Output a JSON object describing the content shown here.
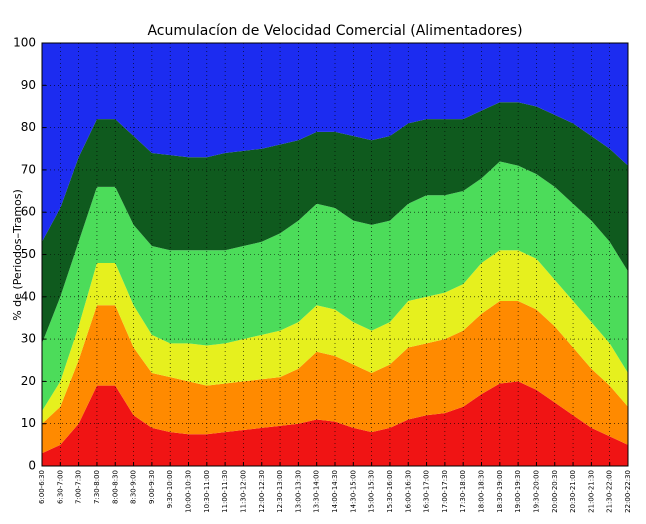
{
  "chart_data": {
    "type": "stacked_area",
    "title": "Acumulacíon de Velocidad Comercial (Alimentadores)",
    "y_label": "% de (Periodos–Tramos)",
    "categories": [
      "6:00-6:30",
      "6:30-7:00",
      "7:00-7:30",
      "7:30-8:00",
      "8:00-8:30",
      "8:30-9:00",
      "9:00-9:30",
      "9:30-10:00",
      "10:00-10:30",
      "10:30-11:00",
      "11:00-11:30",
      "11:30-12:00",
      "12:00-12:30",
      "12:30-13:00",
      "13:00-13:30",
      "13:30-14:00",
      "14:00-14:30",
      "14:30-15:00",
      "15:00-15:30",
      "15:30-16:00",
      "16:00-16:30",
      "16:30-17:00",
      "17:00-17:30",
      "17:30-18:00",
      "18:00-18:30",
      "18:30-19:00",
      "19:00-19:30",
      "19:30-20:00",
      "20:00-20:30",
      "20:30-21:00",
      "21:00-21:30",
      "21:30-22:00",
      "22:00-22:30"
    ],
    "series": [
      {
        "color": "#f01414",
        "values": [
          3,
          5,
          10,
          19,
          19,
          12,
          9,
          8,
          7.5,
          7.5,
          8,
          8.5,
          9,
          9.5,
          10,
          11,
          10.5,
          9,
          8,
          9,
          11,
          12,
          12.5,
          14,
          17,
          19.5,
          20,
          18,
          15,
          12,
          9,
          7,
          5
        ]
      },
      {
        "color": "#ff8a00",
        "values": [
          7,
          9,
          15,
          19,
          19,
          16,
          13,
          13,
          12.5,
          11.5,
          11.5,
          11.5,
          11.5,
          11.5,
          13,
          16,
          15.5,
          15,
          14,
          15,
          17,
          17,
          17.5,
          18,
          19,
          19.5,
          19,
          19,
          18,
          16,
          14,
          12,
          9
        ]
      },
      {
        "color": "#e6f01e",
        "values": [
          3,
          6,
          8,
          10,
          10,
          10,
          9,
          8,
          9,
          9.5,
          9.5,
          10,
          10.5,
          11,
          11,
          11,
          11,
          10,
          10,
          10,
          11,
          11,
          11,
          11,
          12,
          12,
          12,
          12,
          11,
          11,
          11,
          10,
          8
        ]
      },
      {
        "color": "#4cdc5a",
        "values": [
          16,
          20,
          20,
          18,
          18,
          19,
          21,
          22,
          22,
          22.5,
          22,
          22,
          22,
          23,
          24,
          24,
          24,
          24,
          25,
          24,
          23,
          24,
          23,
          22,
          20,
          21,
          20,
          20,
          22,
          23,
          24,
          24,
          24
        ]
      },
      {
        "color": "#0f5a1e",
        "values": [
          24,
          21,
          20,
          16,
          16,
          21,
          22,
          22.5,
          22,
          22,
          23,
          22.5,
          22,
          21,
          19,
          17,
          18,
          20,
          20,
          20,
          19,
          18,
          18,
          17,
          16,
          14,
          15,
          16,
          17,
          19,
          20,
          22,
          25
        ]
      },
      {
        "color": "#1c2cf0",
        "values": [
          47,
          39,
          27,
          18,
          18,
          22,
          26,
          26.5,
          27,
          27,
          26,
          25.5,
          25,
          24,
          23,
          21,
          21,
          22,
          23,
          22,
          19,
          18,
          18,
          18,
          16,
          14,
          14,
          15,
          17,
          19,
          22,
          25,
          29
        ]
      }
    ],
    "ylim": [
      0,
      100
    ],
    "yticks": [
      0,
      10,
      20,
      30,
      40,
      50,
      60,
      70,
      80,
      90,
      100
    ],
    "grid": true
  }
}
